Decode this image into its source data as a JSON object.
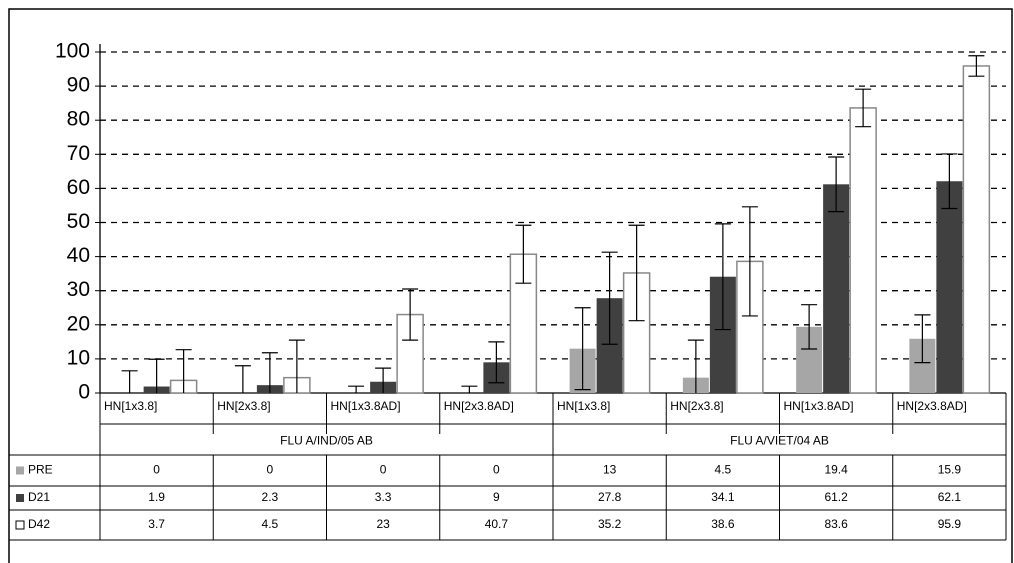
{
  "chart_data": {
    "type": "bar",
    "categories": [
      "HN[1x3.8]",
      "HN[2x3.8]",
      "HN[1x3.8AD]",
      "HN[2x3.8AD]",
      "HN[1x3.8]",
      "HN[2x3.8]",
      "HN[1x3.8AD]",
      "HN[2x3.8AD]"
    ],
    "groups": [
      "FLU A/IND/05 AB",
      "FLU A/VIET/04 AB"
    ],
    "series": [
      {
        "name": "PRE",
        "color": "#a6a6a6",
        "values": [
          0,
          0,
          0,
          0,
          13,
          4.5,
          19.4,
          15.9
        ],
        "errors": [
          6.5,
          8,
          2,
          2,
          12,
          11,
          6.5,
          7
        ]
      },
      {
        "name": "D21",
        "color": "#404040",
        "values": [
          1.9,
          2.3,
          3.3,
          9,
          27.8,
          34.1,
          61.2,
          62.1
        ],
        "errors": [
          8,
          9.5,
          4,
          6,
          13.5,
          15.5,
          8,
          8
        ]
      },
      {
        "name": "D42",
        "color": "#ffffff",
        "values": [
          3.7,
          4.5,
          23,
          40.7,
          35.2,
          38.6,
          83.6,
          95.9
        ],
        "errors": [
          9,
          11,
          7.5,
          8.5,
          14,
          16,
          5.5,
          3
        ]
      }
    ],
    "ylim": [
      0,
      100
    ],
    "yticks": [
      0,
      10,
      20,
      30,
      40,
      50,
      60,
      70,
      80,
      90,
      100
    ],
    "grid": true
  }
}
